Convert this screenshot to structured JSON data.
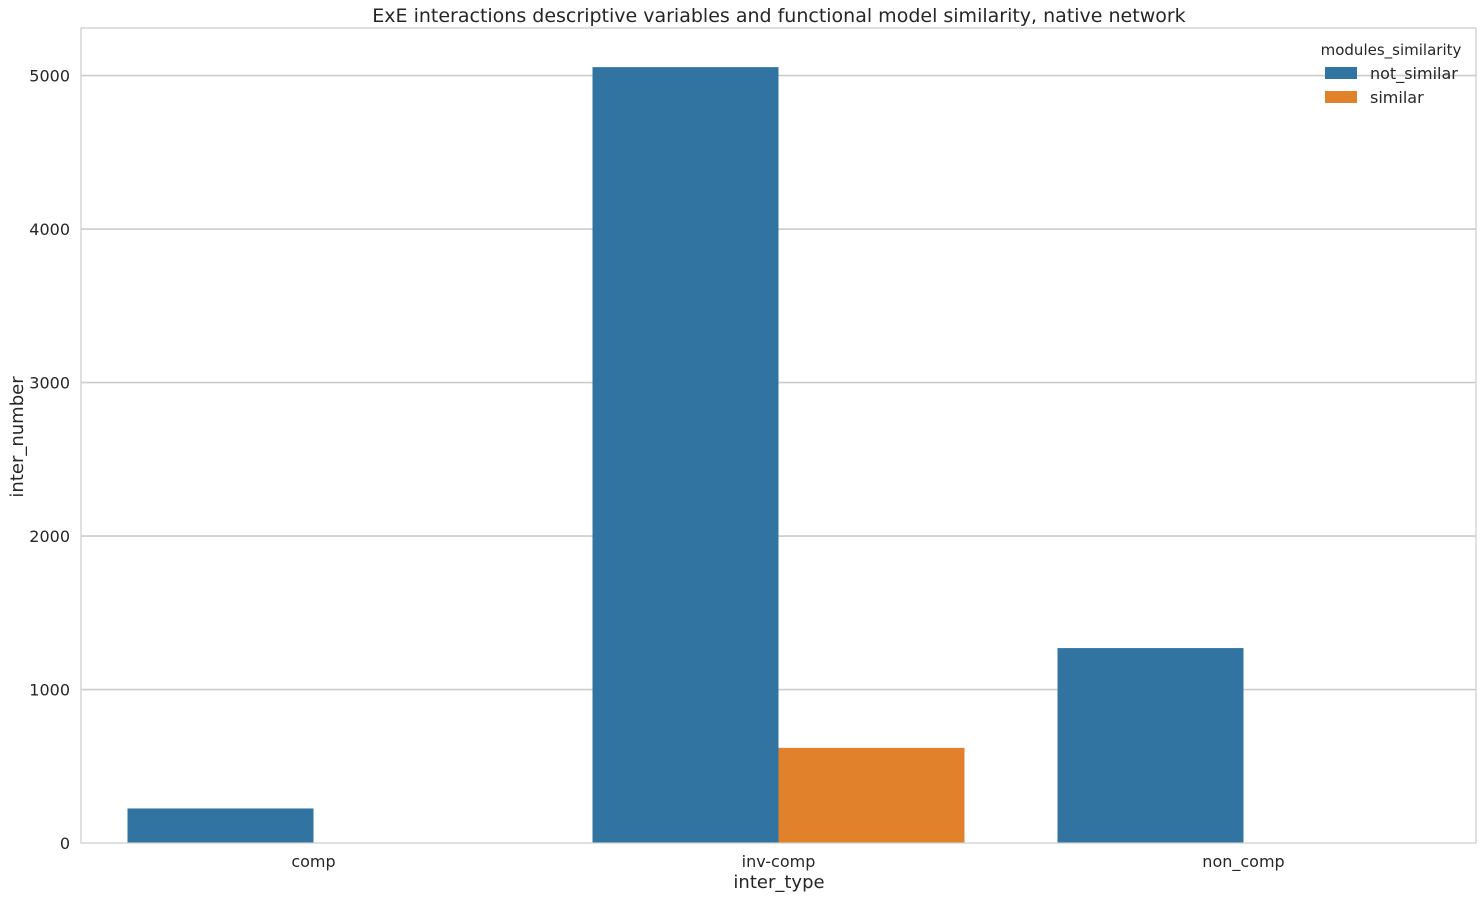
{
  "chart_data": {
    "type": "bar",
    "title": "ExE interactions descriptive variables and functional model similarity, native network",
    "xlabel": "inter_type",
    "ylabel": "inter_number",
    "categories": [
      "comp",
      "inv-comp",
      "non_comp"
    ],
    "series": [
      {
        "name": "not_similar",
        "color": "#3274a1",
        "values": [
          225,
          5055,
          1270
        ]
      },
      {
        "name": "similar",
        "color": "#e1812c",
        "values": [
          0,
          620,
          0
        ]
      }
    ],
    "ylim": [
      0,
      5310
    ],
    "yticks": [
      0,
      1000,
      2000,
      3000,
      4000,
      5000
    ],
    "grid": true,
    "legend": {
      "title": "modules_similarity",
      "placement": "top-right"
    }
  }
}
